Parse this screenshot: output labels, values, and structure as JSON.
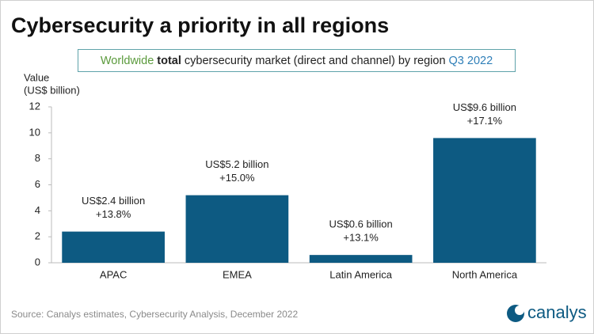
{
  "chart_data": {
    "type": "bar",
    "title": "Cybersecurity a priority in all regions",
    "subtitle": [
      "Worldwide",
      "total",
      "cybersecurity market (direct and channel) by region",
      "Q3 2022"
    ],
    "y_label": [
      "Value",
      "(US$ billion)"
    ],
    "categories": [
      "APAC",
      "EMEA",
      "Latin America",
      "North America"
    ],
    "values": [
      2.4,
      5.2,
      0.6,
      9.6
    ],
    "value_labels": [
      "US$2.4 billion",
      "US$5.2 billion",
      "US$0.6 billion",
      "US$9.6 billion"
    ],
    "growth_labels": [
      "+13.8%",
      "+15.0%",
      "+13.1%",
      "+17.1%"
    ],
    "color": "#0d5a82",
    "ylim": [
      0,
      12
    ],
    "yticks": [
      0,
      2,
      4,
      6,
      8,
      10,
      12
    ],
    "grid": false,
    "source": "Source: Canalys estimates, Cybersecurity Analysis, December 2022",
    "logo": "canalys"
  }
}
